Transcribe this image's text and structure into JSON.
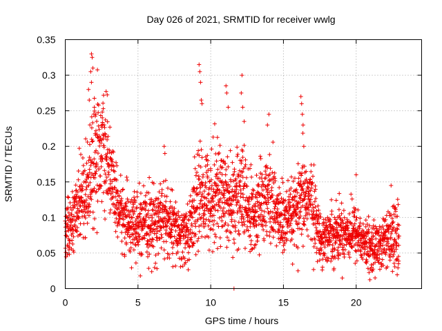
{
  "chart_data": {
    "type": "scatter",
    "title": "Day 026 of 2021, SRMTID for receiver wwlg",
    "xlabel": "GPS time / hours",
    "ylabel": "SRMTID / TECUs",
    "xlim": [
      0,
      24.5
    ],
    "ylim": [
      0,
      0.35
    ],
    "xticks": [
      0,
      5,
      10,
      15,
      20
    ],
    "yticks": [
      0,
      0.05,
      0.1,
      0.15,
      0.2,
      0.25,
      0.3,
      0.35
    ],
    "ytick_labels": [
      "0",
      "0.05",
      "0.1",
      "0.15",
      "0.2",
      "0.25",
      "0.3",
      "0.35"
    ],
    "grid": true,
    "marker": "+",
    "color": "#ee0000",
    "series": [
      {
        "name": "SRMTID",
        "envelope": {
          "x": [
            0,
            0.5,
            1.0,
            1.5,
            2.0,
            2.5,
            3.0,
            3.5,
            4.0,
            5.0,
            6.0,
            6.5,
            7.0,
            8.0,
            8.5,
            9.0,
            9.5,
            10.0,
            10.5,
            11.0,
            11.5,
            12.0,
            12.5,
            13.0,
            13.5,
            14.0,
            14.5,
            15.0,
            15.5,
            16.0,
            16.5,
            17.0,
            17.5,
            18.0,
            19.0,
            20.0,
            20.5,
            21.0,
            22.0,
            22.8
          ],
          "center": [
            0.085,
            0.09,
            0.13,
            0.14,
            0.19,
            0.2,
            0.17,
            0.12,
            0.1,
            0.085,
            0.09,
            0.1,
            0.095,
            0.07,
            0.08,
            0.12,
            0.13,
            0.13,
            0.14,
            0.13,
            0.12,
            0.14,
            0.11,
            0.1,
            0.12,
            0.13,
            0.11,
            0.09,
            0.1,
            0.11,
            0.13,
            0.12,
            0.07,
            0.075,
            0.08,
            0.08,
            0.065,
            0.055,
            0.065,
            0.075
          ],
          "spread": [
            0.035,
            0.04,
            0.05,
            0.06,
            0.08,
            0.07,
            0.05,
            0.045,
            0.04,
            0.04,
            0.045,
            0.05,
            0.045,
            0.035,
            0.04,
            0.06,
            0.06,
            0.06,
            0.07,
            0.06,
            0.06,
            0.07,
            0.055,
            0.05,
            0.05,
            0.055,
            0.05,
            0.045,
            0.04,
            0.045,
            0.06,
            0.05,
            0.03,
            0.035,
            0.035,
            0.035,
            0.03,
            0.03,
            0.035,
            0.04
          ]
        },
        "n_points": 2600,
        "time_range": [
          0.0,
          22.95
        ],
        "highlights": [
          {
            "x": 1.8,
            "y": 0.33
          },
          {
            "x": 1.85,
            "y": 0.325
          },
          {
            "x": 1.9,
            "y": 0.31
          },
          {
            "x": 1.75,
            "y": 0.305
          },
          {
            "x": 1.8,
            "y": 0.29
          },
          {
            "x": 1.6,
            "y": 0.28
          },
          {
            "x": 1.65,
            "y": 0.265
          },
          {
            "x": 2.0,
            "y": 0.255
          },
          {
            "x": 2.1,
            "y": 0.245
          },
          {
            "x": 9.2,
            "y": 0.315
          },
          {
            "x": 9.25,
            "y": 0.305
          },
          {
            "x": 9.3,
            "y": 0.29
          },
          {
            "x": 9.35,
            "y": 0.265
          },
          {
            "x": 9.4,
            "y": 0.26
          },
          {
            "x": 11.05,
            "y": 0.285
          },
          {
            "x": 11.1,
            "y": 0.275
          },
          {
            "x": 11.2,
            "y": 0.255
          },
          {
            "x": 12.15,
            "y": 0.3
          },
          {
            "x": 12.1,
            "y": 0.275
          },
          {
            "x": 12.2,
            "y": 0.255
          },
          {
            "x": 12.3,
            "y": 0.235
          },
          {
            "x": 16.2,
            "y": 0.27
          },
          {
            "x": 16.25,
            "y": 0.26
          },
          {
            "x": 16.3,
            "y": 0.245
          },
          {
            "x": 16.35,
            "y": 0.23
          },
          {
            "x": 16.4,
            "y": 0.2
          },
          {
            "x": 14.0,
            "y": 0.245
          },
          {
            "x": 13.9,
            "y": 0.23
          },
          {
            "x": 6.8,
            "y": 0.2
          },
          {
            "x": 6.85,
            "y": 0.19
          },
          {
            "x": 20.0,
            "y": 0.16
          },
          {
            "x": 22.4,
            "y": 0.145
          },
          {
            "x": 21.3,
            "y": 0.015
          },
          {
            "x": 16.0,
            "y": 0.025
          },
          {
            "x": 11.6,
            "y": 0.0
          }
        ]
      }
    ]
  }
}
